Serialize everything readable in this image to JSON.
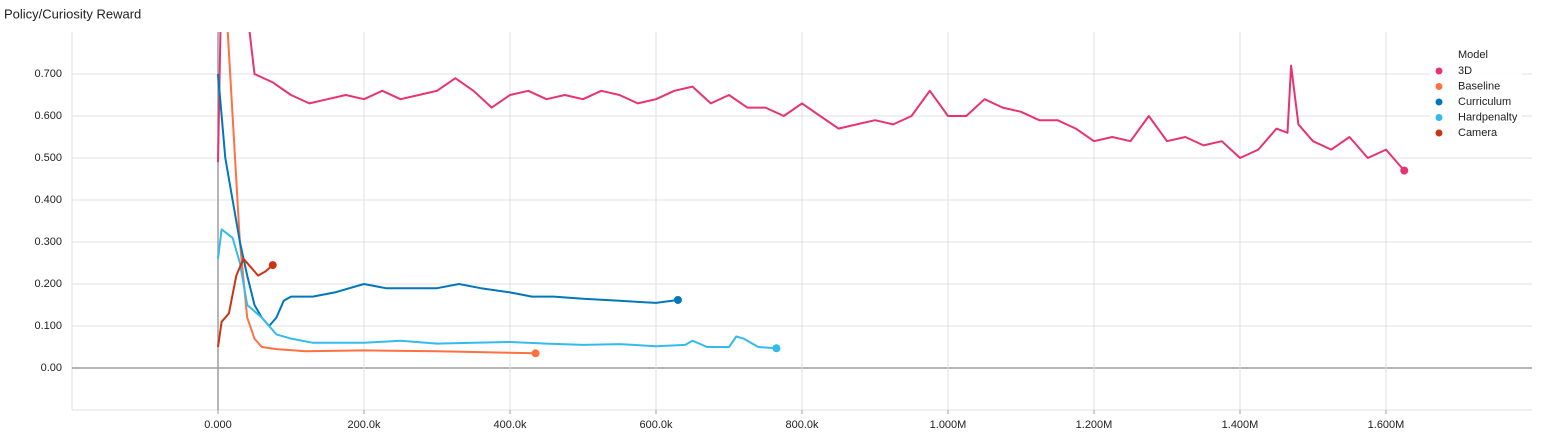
{
  "chart_data": {
    "type": "line",
    "title": "Policy/Curiosity Reward",
    "legend_title": "Model",
    "legend": "top-right",
    "grid": true,
    "xlim": [
      -200000,
      1800000
    ],
    "xticks": [
      {
        "value": 0,
        "label": "0.000"
      },
      {
        "value": 200000,
        "label": "200.0k"
      },
      {
        "value": 400000,
        "label": "400.0k"
      },
      {
        "value": 600000,
        "label": "600.0k"
      },
      {
        "value": 800000,
        "label": "800.0k"
      },
      {
        "value": 1000000,
        "label": "1.000M"
      },
      {
        "value": 1200000,
        "label": "1.200M"
      },
      {
        "value": 1400000,
        "label": "1.400M"
      },
      {
        "value": 1600000,
        "label": "1.600M"
      }
    ],
    "ylim": [
      -0.1,
      0.8
    ],
    "yticks": [
      {
        "value": 0,
        "label": "0.00"
      },
      {
        "value": 0.1,
        "label": "0.100"
      },
      {
        "value": 0.2,
        "label": "0.200"
      },
      {
        "value": 0.3,
        "label": "0.300"
      },
      {
        "value": 0.4,
        "label": "0.400"
      },
      {
        "value": 0.5,
        "label": "0.500"
      },
      {
        "value": 0.6,
        "label": "0.600"
      },
      {
        "value": 0.7,
        "label": "0.700"
      }
    ],
    "series": [
      {
        "name": "3D",
        "color": "#e8336f",
        "x": [
          0,
          5000,
          40000,
          50000,
          75000,
          100000,
          125000,
          150000,
          175000,
          200000,
          225000,
          250000,
          275000,
          300000,
          325000,
          350000,
          375000,
          400000,
          425000,
          450000,
          475000,
          500000,
          525000,
          550000,
          575000,
          600000,
          625000,
          650000,
          675000,
          700000,
          725000,
          750000,
          775000,
          800000,
          825000,
          850000,
          875000,
          900000,
          925000,
          950000,
          975000,
          1000000,
          1025000,
          1050000,
          1075000,
          1100000,
          1125000,
          1150000,
          1175000,
          1200000,
          1225000,
          1250000,
          1275000,
          1300000,
          1325000,
          1350000,
          1375000,
          1400000,
          1425000,
          1450000,
          1465000,
          1470000,
          1480000,
          1500000,
          1525000,
          1550000,
          1575000,
          1600000,
          1625000
        ],
        "values": [
          0.49,
          0.95,
          0.85,
          0.7,
          0.68,
          0.65,
          0.63,
          0.64,
          0.65,
          0.64,
          0.66,
          0.64,
          0.65,
          0.66,
          0.69,
          0.66,
          0.62,
          0.65,
          0.66,
          0.64,
          0.65,
          0.64,
          0.66,
          0.65,
          0.63,
          0.64,
          0.66,
          0.67,
          0.63,
          0.65,
          0.62,
          0.62,
          0.6,
          0.63,
          0.6,
          0.57,
          0.58,
          0.59,
          0.58,
          0.6,
          0.66,
          0.6,
          0.6,
          0.64,
          0.62,
          0.61,
          0.59,
          0.59,
          0.57,
          0.54,
          0.55,
          0.54,
          0.6,
          0.54,
          0.55,
          0.53,
          0.54,
          0.5,
          0.52,
          0.57,
          0.56,
          0.72,
          0.58,
          0.54,
          0.52,
          0.55,
          0.5,
          0.52,
          0.47
        ]
      },
      {
        "name": "Baseline",
        "color": "#ff7043",
        "x": [
          10000,
          20000,
          30000,
          40000,
          50000,
          60000,
          80000,
          120000,
          200000,
          300000,
          350000,
          435000
        ],
        "values": [
          0.9,
          0.6,
          0.3,
          0.12,
          0.07,
          0.05,
          0.045,
          0.04,
          0.042,
          0.04,
          0.038,
          0.035
        ]
      },
      {
        "name": "Curriculum",
        "color": "#0077bb",
        "x": [
          0,
          10000,
          20000,
          30000,
          40000,
          50000,
          60000,
          70000,
          80000,
          90000,
          100000,
          130000,
          160000,
          200000,
          230000,
          260000,
          300000,
          330000,
          360000,
          400000,
          430000,
          460000,
          500000,
          550000,
          600000,
          630000
        ],
        "values": [
          0.7,
          0.5,
          0.4,
          0.3,
          0.22,
          0.15,
          0.12,
          0.1,
          0.12,
          0.16,
          0.17,
          0.17,
          0.18,
          0.2,
          0.19,
          0.19,
          0.19,
          0.2,
          0.19,
          0.18,
          0.17,
          0.17,
          0.165,
          0.16,
          0.155,
          0.162
        ]
      },
      {
        "name": "Hardpenalty",
        "color": "#33bbee",
        "x": [
          0,
          5000,
          20000,
          30000,
          40000,
          60000,
          80000,
          100000,
          130000,
          200000,
          250000,
          300000,
          350000,
          400000,
          450000,
          500000,
          550000,
          600000,
          640000,
          650000,
          670000,
          700000,
          710000,
          720000,
          740000,
          765000
        ],
        "values": [
          0.26,
          0.33,
          0.31,
          0.25,
          0.15,
          0.12,
          0.08,
          0.07,
          0.06,
          0.06,
          0.065,
          0.058,
          0.06,
          0.062,
          0.058,
          0.055,
          0.057,
          0.052,
          0.055,
          0.065,
          0.05,
          0.05,
          0.075,
          0.07,
          0.05,
          0.047
        ]
      },
      {
        "name": "Camera",
        "color": "#cc3311",
        "x": [
          0,
          5000,
          15000,
          25000,
          35000,
          45000,
          55000,
          65000,
          75000
        ],
        "values": [
          0.05,
          0.11,
          0.13,
          0.22,
          0.26,
          0.24,
          0.22,
          0.23,
          0.245
        ]
      }
    ]
  }
}
